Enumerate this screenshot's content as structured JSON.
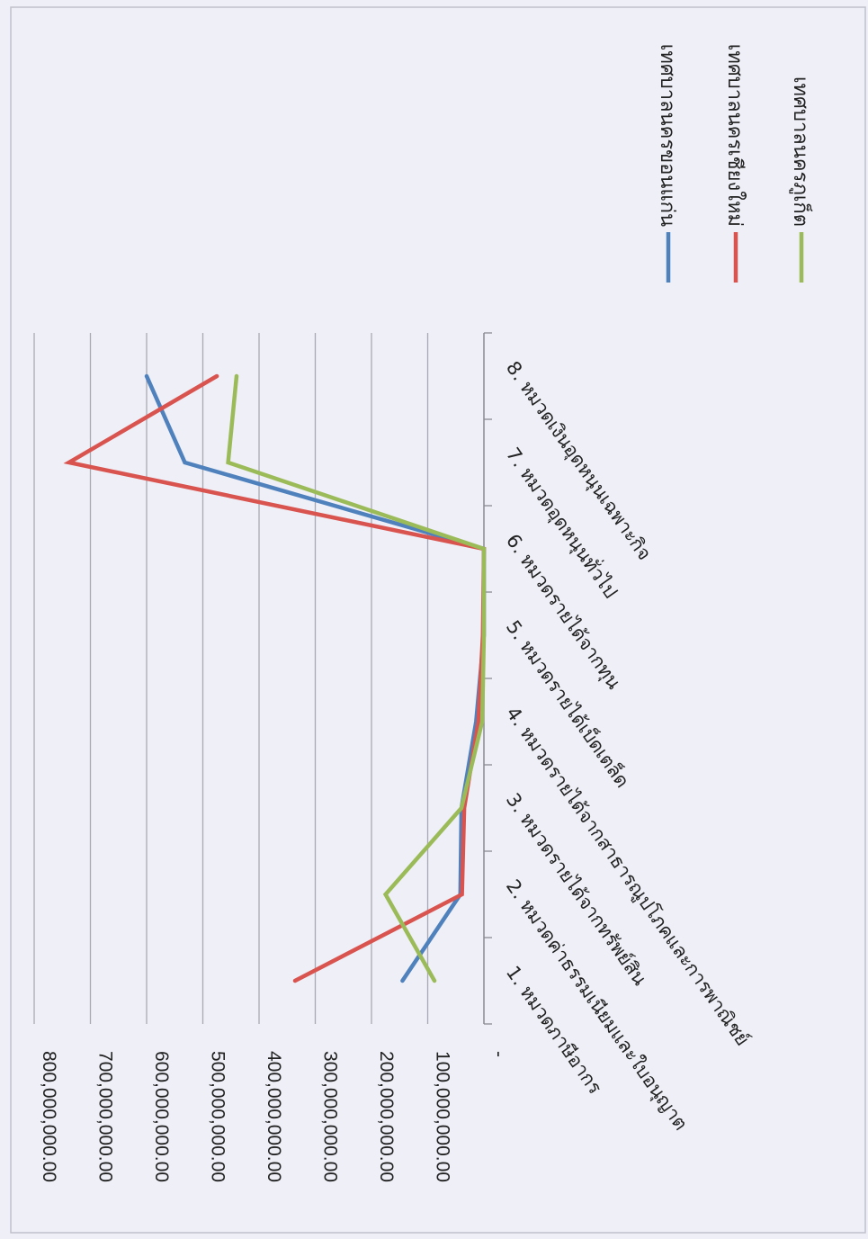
{
  "chart_data": {
    "type": "line",
    "orientation": "rotated-90-clockwise",
    "categories": [
      "1. หมวดภาษีอากร",
      "2. หมวดค่าธรรมเนียมและใบอนุญาต",
      "3. หมวดรายได้จากทรัพย์สิน",
      "4. หมวดรายได้จากสาธารณูปโภคและการพาณิชย์",
      "5. หมวดรายได้เบ็ดเตล็ด",
      "6. หมวดรายได้จากทุน",
      "7. หมวดอุดหนุนทั่วไป",
      "8. หมวดเงินอุดหนุนเฉพาะกิจ"
    ],
    "series": [
      {
        "name": "เทศบาลนครขอนแก่น",
        "color": "#4f81bd",
        "values": [
          145000000,
          42000000,
          40000000,
          14000000,
          0,
          0,
          532000000,
          600000000
        ]
      },
      {
        "name": "เทศบาลนครเชียงใหม่",
        "color": "#d9534f",
        "values": [
          336000000,
          39000000,
          35000000,
          10000000,
          2000000,
          0,
          738000000,
          475000000
        ]
      },
      {
        "name": "เทศบาลนครภูเก็ต",
        "color": "#9bbb59",
        "values": [
          88000000,
          175000000,
          40000000,
          3000000,
          0,
          0,
          455000000,
          440000000
        ]
      }
    ],
    "ylim": [
      0,
      800000000
    ],
    "yticks": [
      0,
      100000000,
      200000000,
      300000000,
      400000000,
      500000000,
      600000000,
      700000000,
      800000000
    ],
    "ytick_labels": [
      "-",
      "100,000,000.00",
      "200,000,000.00",
      "300,000,000.00",
      "400,000,000.00",
      "500,000,000.00",
      "600,000,000.00",
      "700,000,000.00",
      "800,000,000.00"
    ],
    "legend_placement": "right",
    "grid": true
  }
}
